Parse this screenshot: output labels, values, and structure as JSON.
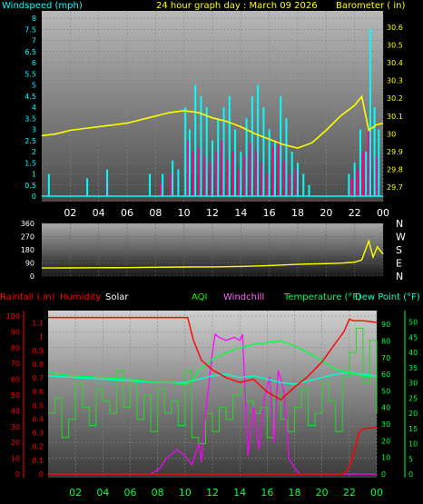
{
  "panels": {
    "top": {
      "title": "24 hour graph day : March 09 2026",
      "left_axis_label": "Windspeed (mph)",
      "right_axis_label": "Barometer ( in)",
      "left_ticks": [
        "0",
        "0.5",
        "1",
        "1.5",
        "2",
        "2.5",
        "3",
        "3.5",
        "4",
        "4.5",
        "5",
        "5.5",
        "6",
        "6.5",
        "7",
        "7.5",
        "8"
      ],
      "right_ticks": [
        "29.7",
        "29.8",
        "29.9",
        "30",
        "30.1",
        "30.2",
        "30.3",
        "30.4",
        "30.5",
        "30.6"
      ]
    },
    "middle": {
      "left_ticks": [
        "0",
        "90",
        "180",
        "270",
        "360"
      ],
      "right_labels": [
        "N",
        "W",
        "S",
        "E",
        "N"
      ]
    },
    "bottom": {
      "header": {
        "rainfall": "Rainfall (.in)",
        "humidity": "Humidity",
        "solar": "Solar",
        "aqi": "AQI",
        "windchill": "Windchill",
        "temperature": "Temperature (°F)",
        "dewpoint": "Dew Point (°F)"
      },
      "humidity_ticks": [
        "0",
        "10",
        "20",
        "30",
        "40",
        "50",
        "60",
        "70",
        "80",
        "90",
        "100"
      ],
      "rain_ticks": [
        "0",
        "0.1",
        "0.2",
        "0.3",
        "0.4",
        "0.5",
        "0.6",
        "0.7",
        "0.8",
        "0.9",
        "1",
        "1.1"
      ],
      "right_ticks_left": [
        "0",
        "10",
        "20",
        "30",
        "40",
        "50",
        "60",
        "70",
        "80",
        "90"
      ],
      "right_ticks_right": [
        "0",
        "5",
        "10",
        "15",
        "20",
        "25",
        "30",
        "35",
        "40",
        "45",
        "50"
      ]
    }
  },
  "x_ticks": [
    "02",
    "04",
    "06",
    "08",
    "10",
    "12",
    "14",
    "16",
    "18",
    "20",
    "22",
    "00"
  ],
  "colors": {
    "windspeed": "#00ffff",
    "gust": "#ff0080",
    "barometer": "#ffff00",
    "direction": "#ffff00",
    "humidity": "#ff0000",
    "rainfall": "#ff0000",
    "solar": "#ff00ff",
    "temperature": "#00ff44",
    "dewpoint": "#00ffcc",
    "aqi": "#22dd22"
  },
  "chart_data": [
    {
      "type": "line",
      "name": "windspeed-barometer",
      "x_unit": "hour",
      "xlim": [
        0,
        24
      ],
      "ylim": [
        0,
        8
      ],
      "y2lim": [
        29.65,
        30.65
      ],
      "series": [
        {
          "axis": "right",
          "x": [
            0,
            1,
            2,
            3,
            4,
            5,
            6,
            7,
            8,
            9,
            10,
            11,
            12,
            13,
            14,
            15,
            16,
            17,
            18,
            19,
            20,
            21,
            22,
            22.5,
            23,
            23.5,
            24
          ],
          "values": [
            29.99,
            30.0,
            30.02,
            30.03,
            30.04,
            30.05,
            30.06,
            30.08,
            30.1,
            30.12,
            30.13,
            30.12,
            30.09,
            30.07,
            30.04,
            30.0,
            29.97,
            29.94,
            29.92,
            29.95,
            30.02,
            30.1,
            30.16,
            30.21,
            30.02,
            30.05,
            30.06
          ]
        },
        {
          "axis": "left",
          "style": "bars",
          "x": [
            0.5,
            3.2,
            4.6,
            7.6,
            8.5,
            9.2,
            9.6,
            10.1,
            10.4,
            10.8,
            11.2,
            11.6,
            12.0,
            12.4,
            12.8,
            13.2,
            13.6,
            14.0,
            14.4,
            14.8,
            15.2,
            15.6,
            16.0,
            16.4,
            16.8,
            17.2,
            17.6,
            18.0,
            18.4,
            18.8,
            21.6,
            22.0,
            22.4,
            22.8,
            23.1,
            23.4,
            23.7
          ],
          "values": [
            1.0,
            0.8,
            1.2,
            1.0,
            1.0,
            1.6,
            1.2,
            4.0,
            3.0,
            5.0,
            4.5,
            4.0,
            2.5,
            3.5,
            4.0,
            4.5,
            3.0,
            2.0,
            3.5,
            4.5,
            5.0,
            4.0,
            3.0,
            2.5,
            4.5,
            3.5,
            2.0,
            1.5,
            1.0,
            0.5,
            1.0,
            1.5,
            3.0,
            2.0,
            7.5,
            4.0,
            3.0
          ]
        },
        {
          "axis": "left",
          "style": "bars",
          "x": [
            4.6,
            8.4,
            9.1,
            10.3,
            10.7,
            11.1,
            11.5,
            11.9,
            12.3,
            12.7,
            13.1,
            13.5,
            13.9,
            14.3,
            14.7,
            15.1,
            15.5,
            15.9,
            16.3,
            16.7,
            17.1,
            17.5,
            17.9,
            21.8,
            22.2,
            22.6,
            23.0,
            23.5
          ],
          "values": [
            0.8,
            0.6,
            1.0,
            2.5,
            2.0,
            2.2,
            1.8,
            1.5,
            2.0,
            2.5,
            1.6,
            2.0,
            1.2,
            1.8,
            2.4,
            2.0,
            1.5,
            1.0,
            2.2,
            2.5,
            1.6,
            1.0,
            1.2,
            0.8,
            1.2,
            2.0,
            3.0,
            1.8
          ]
        }
      ]
    },
    {
      "type": "line",
      "name": "wind-direction",
      "xlim": [
        0,
        24
      ],
      "ylim": [
        0,
        360
      ],
      "series": [
        {
          "x": [
            0,
            2,
            4,
            6,
            8,
            10,
            12,
            14,
            16,
            18,
            20,
            21,
            22,
            22.5,
            23,
            23.3,
            23.6,
            24
          ],
          "values": [
            55,
            56,
            57,
            58,
            60,
            62,
            63,
            66,
            72,
            80,
            85,
            88,
            95,
            110,
            240,
            130,
            200,
            150
          ]
        }
      ]
    },
    {
      "type": "line",
      "name": "humidity-temperature-rain",
      "xlim": [
        0,
        24
      ],
      "ylim": [
        0,
        100
      ],
      "series": [
        {
          "axis": "humidity",
          "x": [
            0,
            10.2,
            10.6,
            11.2,
            12,
            13,
            14,
            15,
            16,
            17,
            18,
            19,
            20,
            21,
            21.6,
            22,
            22.3,
            23,
            24
          ],
          "values": [
            99,
            99,
            85,
            72,
            66,
            61,
            58,
            60,
            52,
            47,
            55,
            62,
            71,
            83,
            90,
            98,
            97,
            97,
            96
          ]
        },
        {
          "axis": "temp",
          "x": [
            0,
            2,
            4,
            6,
            8,
            9,
            10,
            10.5,
            11,
            12,
            13,
            14,
            15,
            16,
            17,
            18,
            19,
            20,
            21,
            22,
            23,
            24
          ],
          "values": [
            61,
            59,
            58,
            57,
            55,
            55,
            54,
            56,
            62,
            69,
            73,
            76,
            78,
            79,
            80,
            77,
            73,
            68,
            63,
            61,
            59,
            58
          ]
        },
        {
          "axis": "temp",
          "x": [
            0,
            2,
            4,
            6,
            8,
            9,
            10,
            11,
            12,
            13,
            14,
            15,
            16,
            17,
            18,
            19,
            20,
            21,
            22,
            23,
            24
          ],
          "values": [
            59,
            58,
            57,
            56,
            55,
            55,
            55,
            57,
            59,
            60,
            58,
            59,
            57,
            55,
            54,
            56,
            58,
            60,
            61,
            60,
            59
          ]
        },
        {
          "axis": "rain",
          "x": [
            0,
            21.5,
            21.8,
            22.1,
            22.4,
            22.7,
            23.0,
            24
          ],
          "values": [
            0,
            0,
            0.02,
            0.08,
            0.18,
            0.3,
            0.33,
            0.34
          ]
        },
        {
          "axis": "solar",
          "x": [
            0,
            7.5,
            8.2,
            8.6,
            9.4,
            10.0,
            10.5,
            11.0,
            11.2,
            11.4,
            12.0,
            12.2,
            12.5,
            13.0,
            13.6,
            14.0,
            14.2,
            14.6,
            15.0,
            15.4,
            15.8,
            16.2,
            16.5,
            16.8,
            17.2,
            17.6,
            18.0,
            18.4,
            24
          ],
          "values": [
            0,
            0,
            2,
            5,
            8,
            6,
            3,
            10,
            4,
            16,
            40,
            46,
            45,
            44,
            45,
            44,
            46,
            6,
            22,
            8,
            25,
            32,
            10,
            34,
            28,
            5,
            2,
            0,
            0
          ]
        },
        {
          "axis": "aqi",
          "x": [
            0,
            0.5,
            1,
            1.5,
            2,
            2.5,
            3,
            3.5,
            4,
            4.5,
            5,
            5.5,
            6,
            6.5,
            7,
            7.5,
            8,
            8.5,
            9,
            9.5,
            10,
            10.5,
            11,
            11.5,
            12,
            12.5,
            13,
            13.5,
            14,
            14.5,
            15,
            15.5,
            16,
            16.5,
            17,
            17.5,
            18,
            18.5,
            19,
            19.5,
            20,
            20.5,
            21,
            21.5,
            22,
            22.5,
            23,
            23.5,
            24
          ],
          "values": [
            20,
            25,
            12,
            18,
            30,
            22,
            16,
            28,
            24,
            20,
            34,
            22,
            30,
            18,
            26,
            14,
            28,
            20,
            24,
            16,
            34,
            12,
            10,
            20,
            14,
            22,
            18,
            26,
            28,
            24,
            20,
            22,
            12,
            26,
            18,
            14,
            22,
            28,
            16,
            20,
            30,
            24,
            14,
            32,
            40,
            48,
            30,
            44,
            20
          ]
        }
      ]
    }
  ]
}
